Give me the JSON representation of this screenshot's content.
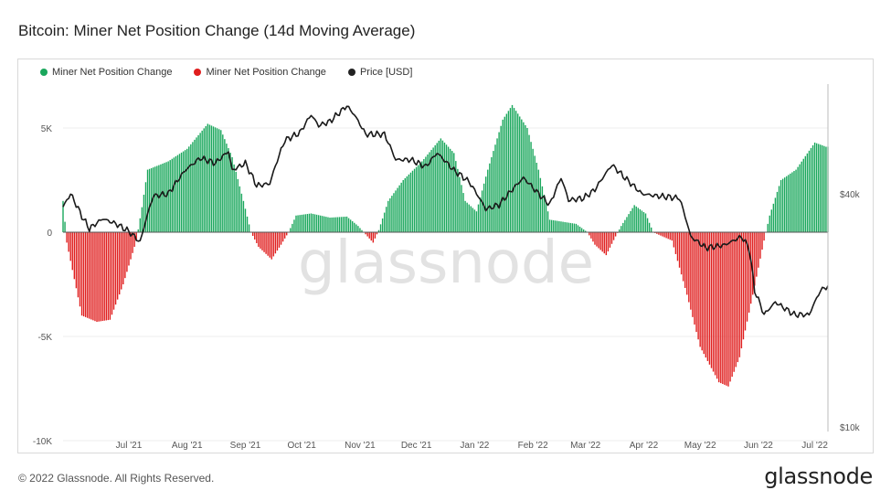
{
  "title": "Bitcoin: Miner Net Position Change (14d Moving Average)",
  "footer": "© 2022 Glassnode. All Rights Reserved.",
  "brand": "glassnode",
  "watermark": "glassnode",
  "colors": {
    "positive": "#1aa75c",
    "negative": "#e01e1e",
    "price": "#1a1a1a"
  },
  "chart_data": {
    "type": "bar",
    "legend": [
      {
        "name": "Miner Net Position Change",
        "color": "#1aa75c"
      },
      {
        "name": "Miner Net Position Change",
        "color": "#e01e1e"
      },
      {
        "name": "Price [USD]",
        "color": "#222222"
      }
    ],
    "legend_position": "top-left",
    "x_ticks": [
      "Jul '21",
      "Aug '21",
      "Sep '21",
      "Oct '21",
      "Nov '21",
      "Dec '21",
      "Jan '22",
      "Feb '22",
      "Mar '22",
      "Apr '22",
      "May '22",
      "Jun '22",
      "Jul '22"
    ],
    "y_left": {
      "ticks": [
        "5K",
        "0",
        "-5K",
        "-10K"
      ],
      "range": [
        -10000,
        6000
      ]
    },
    "y_right": {
      "ticks": [
        "$40k",
        "$10k"
      ],
      "scale": "log",
      "range": [
        10000,
        70000
      ]
    },
    "grid": true,
    "miner_net_position_keypoints": [
      [
        "2021-06-10",
        1500
      ],
      [
        "2021-06-12",
        -500
      ],
      [
        "2021-06-20",
        -4000
      ],
      [
        "2021-06-28",
        -4300
      ],
      [
        "2021-07-05",
        -4200
      ],
      [
        "2021-07-12",
        -2500
      ],
      [
        "2021-07-19",
        -400
      ],
      [
        "2021-07-22",
        1200
      ],
      [
        "2021-07-25",
        3000
      ],
      [
        "2021-08-05",
        3400
      ],
      [
        "2021-08-15",
        4000
      ],
      [
        "2021-08-26",
        5200
      ],
      [
        "2021-09-02",
        4900
      ],
      [
        "2021-09-08",
        3600
      ],
      [
        "2021-09-14",
        1500
      ],
      [
        "2021-09-18",
        0
      ],
      [
        "2021-09-22",
        -700
      ],
      [
        "2021-09-29",
        -1300
      ],
      [
        "2021-10-04",
        -600
      ],
      [
        "2021-10-08",
        0
      ],
      [
        "2021-10-12",
        800
      ],
      [
        "2021-10-20",
        900
      ],
      [
        "2021-10-30",
        700
      ],
      [
        "2021-11-08",
        750
      ],
      [
        "2021-11-14",
        300
      ],
      [
        "2021-11-18",
        -100
      ],
      [
        "2021-11-22",
        -500
      ],
      [
        "2021-11-25",
        100
      ],
      [
        "2021-11-30",
        1500
      ],
      [
        "2021-12-08",
        2500
      ],
      [
        "2021-12-18",
        3400
      ],
      [
        "2021-12-28",
        4500
      ],
      [
        "2022-01-04",
        3800
      ],
      [
        "2022-01-10",
        1500
      ],
      [
        "2022-01-16",
        1000
      ],
      [
        "2022-01-22",
        3000
      ],
      [
        "2022-01-30",
        5400
      ],
      [
        "2022-02-04",
        6100
      ],
      [
        "2022-02-12",
        5000
      ],
      [
        "2022-02-18",
        3000
      ],
      [
        "2022-02-24",
        600
      ],
      [
        "2022-03-10",
        400
      ],
      [
        "2022-03-16",
        0
      ],
      [
        "2022-03-20",
        -600
      ],
      [
        "2022-03-26",
        -1100
      ],
      [
        "2022-03-31",
        -200
      ],
      [
        "2022-04-03",
        300
      ],
      [
        "2022-04-10",
        1300
      ],
      [
        "2022-04-16",
        900
      ],
      [
        "2022-04-20",
        0
      ],
      [
        "2022-04-30",
        -400
      ],
      [
        "2022-05-08",
        -3000
      ],
      [
        "2022-05-15",
        -5500
      ],
      [
        "2022-05-25",
        -7200
      ],
      [
        "2022-05-30",
        -7400
      ],
      [
        "2022-06-05",
        -6000
      ],
      [
        "2022-06-12",
        -3000
      ],
      [
        "2022-06-18",
        -400
      ],
      [
        "2022-06-21",
        800
      ],
      [
        "2022-06-27",
        2500
      ],
      [
        "2022-07-05",
        3000
      ],
      [
        "2022-07-15",
        4300
      ],
      [
        "2022-07-21",
        4100
      ]
    ],
    "price_usd_keypoints": [
      [
        "2021-06-10",
        37000
      ],
      [
        "2021-06-14",
        40000
      ],
      [
        "2021-06-20",
        35000
      ],
      [
        "2021-06-24",
        32500
      ],
      [
        "2021-07-01",
        34500
      ],
      [
        "2021-07-08",
        33500
      ],
      [
        "2021-07-15",
        32000
      ],
      [
        "2021-07-21",
        30000
      ],
      [
        "2021-07-28",
        39500
      ],
      [
        "2021-08-05",
        40000
      ],
      [
        "2021-08-14",
        46000
      ],
      [
        "2021-08-22",
        49500
      ],
      [
        "2021-08-30",
        48000
      ],
      [
        "2021-09-06",
        51500
      ],
      [
        "2021-09-08",
        46000
      ],
      [
        "2021-09-15",
        48000
      ],
      [
        "2021-09-21",
        42000
      ],
      [
        "2021-09-28",
        42500
      ],
      [
        "2021-10-06",
        55000
      ],
      [
        "2021-10-14",
        57500
      ],
      [
        "2021-10-20",
        64000
      ],
      [
        "2021-10-24",
        60000
      ],
      [
        "2021-10-30",
        61500
      ],
      [
        "2021-11-08",
        67500
      ],
      [
        "2021-11-12",
        64000
      ],
      [
        "2021-11-18",
        57000
      ],
      [
        "2021-11-28",
        57000
      ],
      [
        "2021-12-04",
        49000
      ],
      [
        "2021-12-12",
        49000
      ],
      [
        "2021-12-20",
        47000
      ],
      [
        "2021-12-26",
        51000
      ],
      [
        "2022-01-04",
        46000
      ],
      [
        "2022-01-12",
        43000
      ],
      [
        "2022-01-21",
        36500
      ],
      [
        "2022-01-28",
        37500
      ],
      [
        "2022-02-10",
        44000
      ],
      [
        "2022-02-18",
        40000
      ],
      [
        "2022-02-24",
        37500
      ],
      [
        "2022-03-02",
        44000
      ],
      [
        "2022-03-06",
        38500
      ],
      [
        "2022-03-14",
        39000
      ],
      [
        "2022-03-20",
        41000
      ],
      [
        "2022-03-29",
        47500
      ],
      [
        "2022-04-06",
        43500
      ],
      [
        "2022-04-14",
        40000
      ],
      [
        "2022-04-22",
        39500
      ],
      [
        "2022-05-04",
        39000
      ],
      [
        "2022-05-10",
        31000
      ],
      [
        "2022-05-18",
        29000
      ],
      [
        "2022-05-28",
        29500
      ],
      [
        "2022-06-06",
        31000
      ],
      [
        "2022-06-10",
        29000
      ],
      [
        "2022-06-13",
        22500
      ],
      [
        "2022-06-18",
        19500
      ],
      [
        "2022-06-24",
        21000
      ],
      [
        "2022-07-04",
        19500
      ],
      [
        "2022-07-12",
        19500
      ],
      [
        "2022-07-18",
        22500
      ],
      [
        "2022-07-21",
        23000
      ]
    ]
  }
}
